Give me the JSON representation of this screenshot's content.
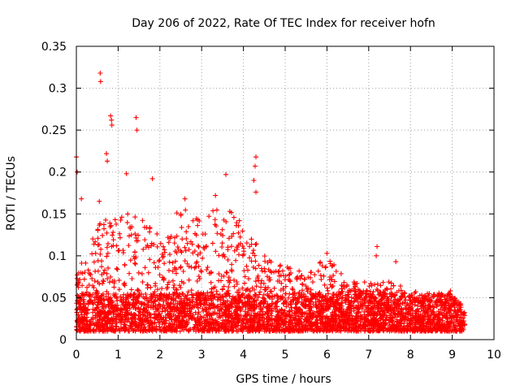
{
  "chart_data": {
    "type": "scatter",
    "title": "Day 206 of 2022, Rate Of TEC Index for receiver hofn",
    "xlabel": "GPS time / hours",
    "ylabel": "ROTI / TECUs",
    "xlim": [
      0,
      10
    ],
    "ylim": [
      0,
      0.35
    ],
    "xticks": [
      "0",
      "1",
      "2",
      "3",
      "4",
      "5",
      "6",
      "7",
      "8",
      "9",
      "10"
    ],
    "yticks": [
      "0",
      "0.05",
      "0.1",
      "0.15",
      "0.2",
      "0.25",
      "0.3",
      "0.35"
    ],
    "grid": true,
    "marker": "+",
    "color": "#ff0000",
    "series": [
      {
        "name": "ROTI",
        "x_range_observed": [
          0,
          9.3
        ],
        "typical_band": [
          0.01,
          0.08
        ],
        "outliers": [
          {
            "x": 0.0,
            "y": 0.218
          },
          {
            "x": 0.02,
            "y": 0.2
          },
          {
            "x": 0.57,
            "y": 0.318
          },
          {
            "x": 0.58,
            "y": 0.308
          },
          {
            "x": 0.82,
            "y": 0.267
          },
          {
            "x": 0.84,
            "y": 0.262
          },
          {
            "x": 0.85,
            "y": 0.256
          },
          {
            "x": 0.72,
            "y": 0.222
          },
          {
            "x": 0.74,
            "y": 0.213
          },
          {
            "x": 1.43,
            "y": 0.265
          },
          {
            "x": 1.45,
            "y": 0.25
          },
          {
            "x": 1.2,
            "y": 0.198
          },
          {
            "x": 1.82,
            "y": 0.192
          },
          {
            "x": 3.58,
            "y": 0.197
          },
          {
            "x": 4.3,
            "y": 0.218
          },
          {
            "x": 4.28,
            "y": 0.207
          },
          {
            "x": 4.25,
            "y": 0.19
          },
          {
            "x": 4.3,
            "y": 0.176
          },
          {
            "x": 0.12,
            "y": 0.168
          },
          {
            "x": 0.55,
            "y": 0.165
          },
          {
            "x": 2.6,
            "y": 0.168
          },
          {
            "x": 3.33,
            "y": 0.172
          },
          {
            "x": 6.0,
            "y": 0.103
          },
          {
            "x": 7.2,
            "y": 0.111
          },
          {
            "x": 7.18,
            "y": 0.1
          },
          {
            "x": 7.65,
            "y": 0.093
          }
        ],
        "envelope": [
          {
            "x": 0.0,
            "max": 0.08
          },
          {
            "x": 0.5,
            "max": 0.14
          },
          {
            "x": 1.0,
            "max": 0.15
          },
          {
            "x": 1.5,
            "max": 0.15
          },
          {
            "x": 2.0,
            "max": 0.13
          },
          {
            "x": 2.5,
            "max": 0.16
          },
          {
            "x": 3.0,
            "max": 0.15
          },
          {
            "x": 3.5,
            "max": 0.16
          },
          {
            "x": 4.0,
            "max": 0.15
          },
          {
            "x": 4.5,
            "max": 0.1
          },
          {
            "x": 5.0,
            "max": 0.09
          },
          {
            "x": 5.5,
            "max": 0.08
          },
          {
            "x": 6.0,
            "max": 0.1
          },
          {
            "x": 6.5,
            "max": 0.07
          },
          {
            "x": 7.0,
            "max": 0.07
          },
          {
            "x": 7.5,
            "max": 0.07
          },
          {
            "x": 8.0,
            "max": 0.06
          },
          {
            "x": 8.5,
            "max": 0.055
          },
          {
            "x": 9.0,
            "max": 0.06
          },
          {
            "x": 9.3,
            "max": 0.035
          }
        ]
      }
    ]
  }
}
